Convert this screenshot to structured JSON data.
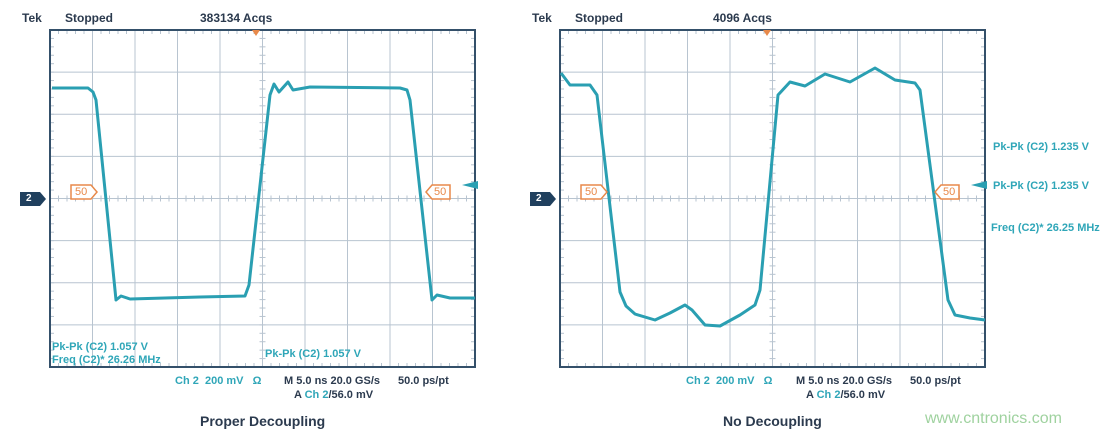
{
  "chart_data": [
    {
      "type": "line",
      "title": "Proper Decoupling",
      "header": {
        "brand": "Tek",
        "state": "Stopped",
        "acqs": "383134 Acqs"
      },
      "channel": "2",
      "trigger_level_marker": "50",
      "measurements": [
        "Pk-Pk (C2) 1.057 V",
        "Freq (C2)*  26.26 MHz",
        "Pk-Pk (C2) 1.057 V"
      ],
      "footer": {
        "ch": "Ch 2",
        "volts": "200 mV",
        "ohm": "Ω",
        "timebase": "M 5.0 ns 20.0 GS/s",
        "res": "50.0 ps/pt",
        "trig_a": "A",
        "trig_ch": "Ch 2",
        "trig_lvl": "/56.0 mV"
      },
      "grid": {
        "x_divs": 10,
        "y_divs": 8
      }
    },
    {
      "type": "line",
      "title": "No Decoupling",
      "header": {
        "brand": "Tek",
        "state": "Stopped",
        "acqs": "4096 Acqs"
      },
      "channel": "2",
      "trigger_level_marker": "50",
      "measurements": [
        "Pk-Pk (C2)  1.235 V",
        "Pk-Pk (C2)  1.235 V",
        "Freq (C2)*  26.25 MHz"
      ],
      "footer": {
        "ch": "Ch 2",
        "volts": "200 mV",
        "ohm": "Ω",
        "timebase": "M 5.0 ns 20.0 GS/s",
        "res": "50.0 ps/pt",
        "trig_a": "A",
        "trig_ch": "Ch 2",
        "trig_lvl": "/56.0 mV"
      },
      "grid": {
        "x_divs": 10,
        "y_divs": 8
      }
    }
  ],
  "watermark": "www.cntronics.com",
  "colors": {
    "trace": "#2a9fb2",
    "grid": "#b8c4d0",
    "frame": "#34506a",
    "marker": "#e8894a"
  }
}
